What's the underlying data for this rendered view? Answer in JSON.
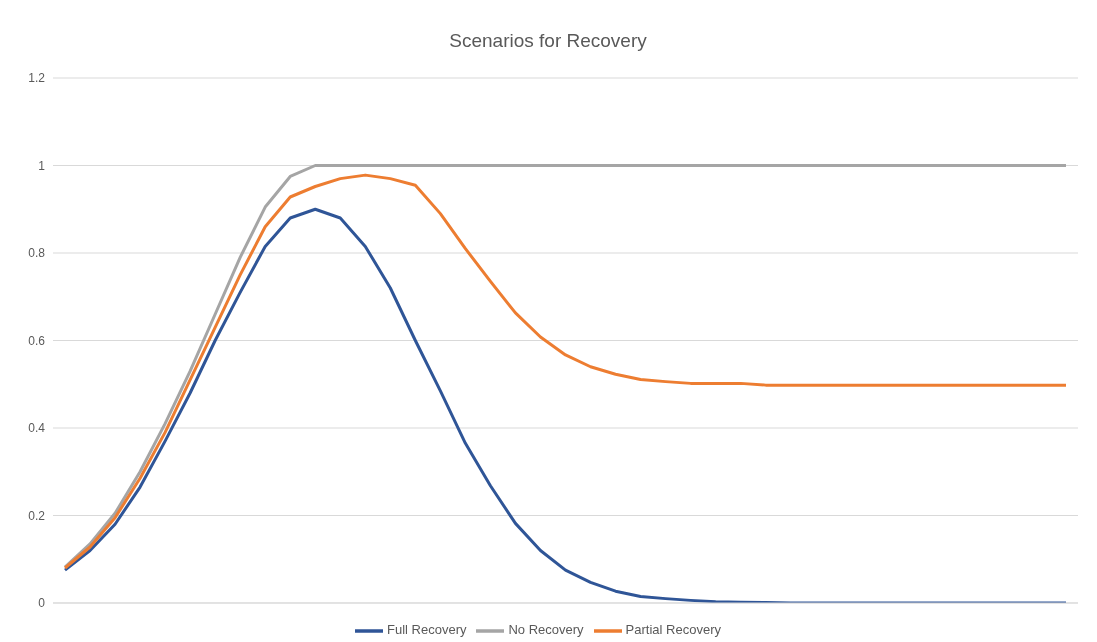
{
  "chart_data": {
    "type": "line",
    "title": "Scenarios for Recovery",
    "categories": [
      null,
      null,
      null,
      null,
      null,
      null,
      null,
      null,
      null,
      null,
      null,
      null,
      null,
      null,
      null,
      null,
      null,
      null,
      null,
      null,
      null,
      null,
      null,
      null,
      null,
      null,
      null,
      null,
      null,
      null,
      null,
      null,
      null,
      null,
      null,
      null,
      null,
      null,
      null,
      null,
      null
    ],
    "series": [
      {
        "name": "Full Recovery",
        "color": "#2f5597",
        "values": [
          0.075,
          0.12,
          0.18,
          0.265,
          0.37,
          0.48,
          0.6,
          0.71,
          0.815,
          0.88,
          0.9,
          0.88,
          0.815,
          0.72,
          0.6,
          0.485,
          0.365,
          0.268,
          0.182,
          0.12,
          0.075,
          0.047,
          0.027,
          0.015,
          0.01,
          0.006,
          0.003,
          0.002,
          0.001,
          0,
          0,
          0,
          0,
          0,
          0,
          0,
          0,
          0,
          0,
          0,
          0
        ]
      },
      {
        "name": "No Recovery",
        "color": "#a5a5a5",
        "values": [
          0.082,
          0.135,
          0.205,
          0.3,
          0.41,
          0.53,
          0.66,
          0.79,
          0.905,
          0.975,
          1,
          1,
          1,
          1,
          1,
          1,
          1,
          1,
          1,
          1,
          1,
          1,
          1,
          1,
          1,
          1,
          1,
          1,
          1,
          1,
          1,
          1,
          1,
          1,
          1,
          1,
          1,
          1,
          1,
          1,
          1
        ]
      },
      {
        "name": "Partial Recovery",
        "color": "#ed7d31",
        "values": [
          0.08,
          0.128,
          0.195,
          0.285,
          0.39,
          0.51,
          0.63,
          0.75,
          0.86,
          0.928,
          0.952,
          0.97,
          0.978,
          0.97,
          0.955,
          0.89,
          0.81,
          0.735,
          0.663,
          0.608,
          0.567,
          0.54,
          0.523,
          0.511,
          0.506,
          0.502,
          0.502,
          0.502,
          0.498,
          0.498,
          0.498,
          0.498,
          0.498,
          0.498,
          0.498,
          0.498,
          0.498,
          0.498,
          0.498,
          0.498,
          0.498
        ]
      }
    ],
    "ylim": [
      0,
      1.2
    ],
    "yticks": [
      0,
      0.2,
      0.4,
      0.6,
      0.8,
      1,
      1.2
    ],
    "grid": "y",
    "legend": "bottom",
    "marker": "none",
    "line_style": "solid"
  }
}
